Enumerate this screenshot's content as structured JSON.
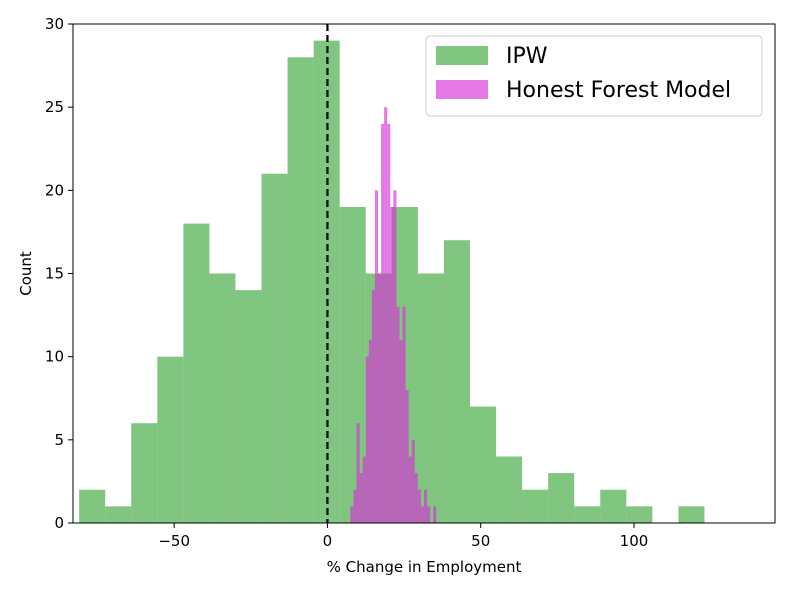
{
  "chart_data": {
    "type": "bar",
    "title": "",
    "xlabel": "% Change in Employment",
    "ylabel": "Count",
    "xlim": [
      -83,
      146
    ],
    "ylim": [
      0,
      30
    ],
    "xticks": [
      -50,
      0,
      50,
      100
    ],
    "xtick_labels": [
      "−50",
      "0",
      "50",
      "100"
    ],
    "yticks": [
      0,
      5,
      10,
      15,
      20,
      25,
      30
    ],
    "ytick_labels": [
      "0",
      "5",
      "10",
      "15",
      "20",
      "25",
      "30"
    ],
    "grid": false,
    "legend_position": "top-right",
    "reference_line": {
      "x": 0,
      "style": "dashed",
      "color": "#000000"
    },
    "series": [
      {
        "name": "IPW",
        "color": "#2ca02c",
        "alpha": 0.6,
        "bins": [
          [
            -81,
            -72.5,
            2
          ],
          [
            -72.5,
            -64,
            1
          ],
          [
            -64,
            -55.5,
            6
          ],
          [
            -55.5,
            -47,
            10
          ],
          [
            -47,
            -38.5,
            18
          ],
          [
            -38.5,
            -30,
            15
          ],
          [
            -30,
            -21.5,
            14
          ],
          [
            -21.5,
            -13,
            21
          ],
          [
            -13,
            -4.5,
            28
          ],
          [
            -4.5,
            4,
            29
          ],
          [
            4,
            12.5,
            19
          ],
          [
            12.5,
            21,
            15
          ],
          [
            21,
            29.5,
            19
          ],
          [
            29.5,
            38,
            15
          ],
          [
            38,
            46.5,
            17
          ],
          [
            46.5,
            55,
            7
          ],
          [
            55,
            63.5,
            4
          ],
          [
            63.5,
            72,
            2
          ],
          [
            72,
            80.5,
            3
          ],
          [
            80.5,
            89,
            1
          ],
          [
            89,
            97.5,
            2
          ],
          [
            97.5,
            106,
            1
          ],
          [
            106,
            114.5,
            0
          ],
          [
            114.5,
            123,
            1
          ]
        ]
      },
      {
        "name": "Honest Forest Model",
        "color": "#d62fd6",
        "alpha": 0.65,
        "bins": [
          [
            7.5,
            8.5,
            1
          ],
          [
            8.5,
            9.5,
            2
          ],
          [
            9.5,
            10.5,
            6
          ],
          [
            10.5,
            11.5,
            3
          ],
          [
            11.5,
            12.5,
            4
          ],
          [
            12.5,
            13.5,
            10
          ],
          [
            13.5,
            14.5,
            11
          ],
          [
            14.5,
            15.5,
            14
          ],
          [
            15.5,
            16.5,
            20
          ],
          [
            16.5,
            17.5,
            15
          ],
          [
            17.5,
            18.5,
            24
          ],
          [
            18.5,
            19.5,
            25
          ],
          [
            19.5,
            20.5,
            24
          ],
          [
            20.5,
            21.5,
            19
          ],
          [
            21.5,
            22.5,
            20
          ],
          [
            22.5,
            23.5,
            13
          ],
          [
            23.5,
            24.5,
            11
          ],
          [
            24.5,
            25.5,
            13
          ],
          [
            25.5,
            26.5,
            8
          ],
          [
            26.5,
            27.5,
            4
          ],
          [
            27.5,
            28.5,
            5
          ],
          [
            28.5,
            29.5,
            3
          ],
          [
            29.5,
            30.5,
            2
          ],
          [
            30.5,
            31.5,
            1
          ],
          [
            31.5,
            32.5,
            2
          ],
          [
            32.5,
            33.5,
            1
          ],
          [
            34.5,
            35.5,
            1
          ]
        ]
      }
    ]
  }
}
